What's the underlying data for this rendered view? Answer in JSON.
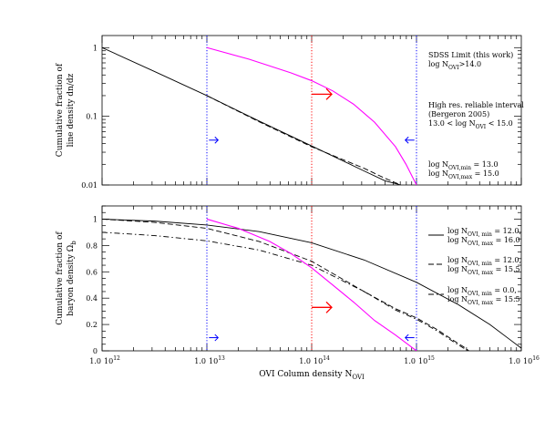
{
  "chart_data": [
    {
      "type": "line",
      "ylabel_line1": "Cumulative fraction of",
      "ylabel_line2": "line density dn/dz",
      "xscale": "log",
      "yscale": "log",
      "xlim": [
        1000000000000.0,
        1e+16
      ],
      "ylim": [
        0.01,
        1.5
      ],
      "yticks": [
        {
          "value": 1,
          "label": "1"
        },
        {
          "value": 0.1,
          "label": "0.1"
        },
        {
          "value": 0.01,
          "label": "0.01"
        }
      ],
      "series": [
        {
          "style": "solid",
          "color": "#000000",
          "x": [
            12.0,
            12.5,
            13.0,
            13.5,
            14.0,
            14.5,
            14.7,
            14.8,
            14.85
          ],
          "y": [
            1.0,
            0.45,
            0.2,
            0.085,
            0.037,
            0.016,
            0.0115,
            0.0105,
            0.01
          ]
        },
        {
          "style": "dashed",
          "color": "#000000",
          "x": [
            13.0,
            13.5,
            14.0,
            14.5,
            14.7,
            14.8,
            14.85
          ],
          "y": [
            0.2,
            0.083,
            0.036,
            0.0175,
            0.0125,
            0.0108,
            0.01
          ]
        },
        {
          "style": "solid",
          "color": "#ff00ff",
          "x": [
            13.0,
            13.4,
            13.8,
            14.0,
            14.2,
            14.4,
            14.6,
            14.8,
            14.9,
            15.0
          ],
          "y": [
            1.0,
            0.68,
            0.43,
            0.33,
            0.235,
            0.15,
            0.082,
            0.036,
            0.02,
            0.01
          ]
        }
      ],
      "vlines": [
        {
          "x": 13.0,
          "color": "#0000ff"
        },
        {
          "x": 14.0,
          "color": "#ff0000"
        },
        {
          "x": 15.0,
          "color": "#0000ff"
        }
      ],
      "arrows": [
        {
          "x": 13.02,
          "y": 0.045,
          "dir": "right",
          "size": "small",
          "color": "#0000ff"
        },
        {
          "x": 14.0,
          "y": 0.21,
          "dir": "right",
          "size": "large",
          "color": "#ff0000"
        },
        {
          "x": 14.98,
          "y": 0.045,
          "dir": "left",
          "size": "small",
          "color": "#0000ff"
        }
      ],
      "annotations": [
        {
          "color": "#ff0000",
          "lines": [
            [
              {
                "t": "SDSS Limit (this work)"
              }
            ],
            [
              {
                "t": "log N"
              },
              {
                "t": "OVI",
                "sub": true
              },
              {
                "t": ">14.0"
              }
            ]
          ]
        },
        {
          "color": "#0000ff",
          "lines": [
            [
              {
                "t": "High res. reliable interval"
              }
            ],
            [
              {
                "t": "(Bergeron 2005)"
              }
            ],
            [
              {
                "t": "13.0 < log N"
              },
              {
                "t": "OVI",
                "sub": true
              },
              {
                "t": " < 15.0"
              }
            ]
          ]
        },
        {
          "color": "#ff00ff",
          "lines": [
            [
              {
                "t": "log N"
              },
              {
                "t": "OVI,min",
                "sub": true
              },
              {
                "t": " = 13.0"
              }
            ],
            [
              {
                "t": "log N"
              },
              {
                "t": "OVI,max",
                "sub": true
              },
              {
                "t": " = 15.0"
              }
            ]
          ]
        }
      ]
    },
    {
      "type": "line",
      "ylabel_line1": "Cumulative fraction of",
      "ylabel_line2": "baryon density Ω",
      "ylabel_sub": "b",
      "xscale": "log",
      "yscale": "linear",
      "xlabel": "OVI Column density N",
      "xlabel_sub": "OVI",
      "xlim": [
        1000000000000.0,
        1e+16
      ],
      "ylim": [
        0,
        1.1
      ],
      "xticks": [
        {
          "value": 12,
          "prefix": "1.0",
          "label": "10",
          "exp": "12"
        },
        {
          "value": 13,
          "prefix": "1.0",
          "label": "10",
          "exp": "13"
        },
        {
          "value": 14,
          "prefix": "1.0",
          "label": "10",
          "exp": "14"
        },
        {
          "value": 15,
          "prefix": "1.0",
          "label": "10",
          "exp": "15"
        },
        {
          "value": 16,
          "prefix": "1.0",
          "label": "10",
          "exp": "16"
        }
      ],
      "yticks": [
        {
          "value": 0,
          "label": "0"
        },
        {
          "value": 0.2,
          "label": "0.2"
        },
        {
          "value": 0.4,
          "label": "0.4"
        },
        {
          "value": 0.6,
          "label": "0.6"
        },
        {
          "value": 0.8,
          "label": "0.8"
        },
        {
          "value": 1,
          "label": "1"
        }
      ],
      "series": [
        {
          "style": "solid",
          "color": "#000000",
          "x": [
            12.0,
            12.5,
            13.0,
            13.5,
            14.0,
            14.5,
            15.0,
            15.4,
            15.7,
            15.9,
            16.0
          ],
          "y": [
            1.0,
            0.985,
            0.955,
            0.905,
            0.82,
            0.69,
            0.52,
            0.35,
            0.2,
            0.08,
            0.02
          ]
        },
        {
          "style": "dashed",
          "color": "#000000",
          "x": [
            12.0,
            12.5,
            13.0,
            13.5,
            14.0,
            14.5,
            14.8,
            15.0,
            15.2,
            15.35,
            15.45,
            15.5
          ],
          "y": [
            1.0,
            0.975,
            0.93,
            0.83,
            0.68,
            0.45,
            0.32,
            0.25,
            0.16,
            0.08,
            0.03,
            0.0
          ]
        },
        {
          "style": "dashdot",
          "color": "#000000",
          "x": [
            12.0,
            12.5,
            13.0,
            13.5,
            14.0,
            14.5,
            14.8,
            15.0,
            15.2,
            15.35,
            15.45,
            15.5
          ],
          "y": [
            0.9,
            0.875,
            0.835,
            0.765,
            0.65,
            0.45,
            0.31,
            0.24,
            0.15,
            0.07,
            0.02,
            0.0
          ]
        },
        {
          "style": "solid",
          "color": "#ff00ff",
          "x": [
            13.0,
            13.3,
            13.6,
            13.8,
            14.0,
            14.2,
            14.4,
            14.6,
            14.8,
            15.0
          ],
          "y": [
            1.0,
            0.93,
            0.83,
            0.74,
            0.63,
            0.5,
            0.37,
            0.23,
            0.12,
            0.0
          ]
        }
      ],
      "vlines": [
        {
          "x": 13.0,
          "color": "#0000ff"
        },
        {
          "x": 14.0,
          "color": "#ff0000"
        },
        {
          "x": 15.0,
          "color": "#0000ff"
        }
      ],
      "arrows": [
        {
          "x": 13.02,
          "y": 0.1,
          "dir": "right",
          "size": "small",
          "color": "#0000ff"
        },
        {
          "x": 14.0,
          "y": 0.33,
          "dir": "right",
          "size": "large",
          "color": "#ff0000"
        },
        {
          "x": 14.98,
          "y": 0.1,
          "dir": "left",
          "size": "small",
          "color": "#0000ff"
        }
      ],
      "legend": [
        {
          "style": "solid",
          "lines": [
            [
              {
                "t": "log N"
              },
              {
                "t": "OVI, min",
                "sub": true
              },
              {
                "t": " = 12.0,"
              }
            ],
            [
              {
                "t": "log N"
              },
              {
                "t": "OVI, max",
                "sub": true
              },
              {
                "t": " = 16.0"
              }
            ]
          ]
        },
        {
          "style": "dashed",
          "lines": [
            [
              {
                "t": "log N"
              },
              {
                "t": "OVI, min",
                "sub": true
              },
              {
                "t": " = 12.0,"
              }
            ],
            [
              {
                "t": "log N"
              },
              {
                "t": "OVI, max",
                "sub": true
              },
              {
                "t": " = 15.5"
              }
            ]
          ]
        },
        {
          "style": "dashdot",
          "lines": [
            [
              {
                "t": "log N"
              },
              {
                "t": "OVI, min",
                "sub": true
              },
              {
                "t": " = 0.0,"
              }
            ],
            [
              {
                "t": "log N"
              },
              {
                "t": "OVI, max",
                "sub": true
              },
              {
                "t": " = 15.5"
              }
            ]
          ]
        }
      ]
    }
  ]
}
